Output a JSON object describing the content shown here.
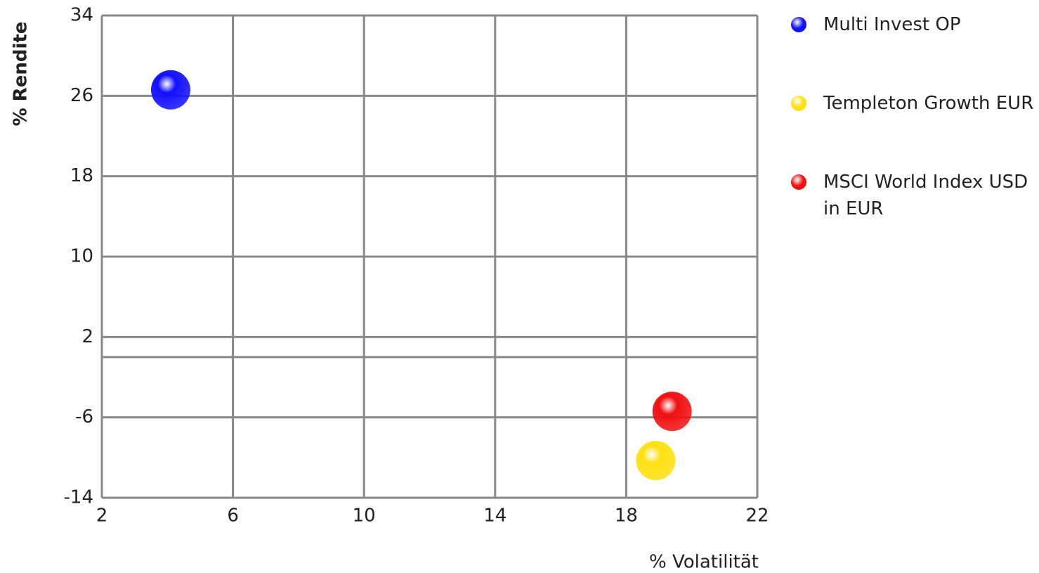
{
  "chart_data": {
    "type": "scatter",
    "xlabel": "% Volatilität",
    "ylabel": "% Rendite",
    "xlim": [
      2,
      22
    ],
    "xticks": [
      2,
      6,
      10,
      14,
      18,
      22
    ],
    "ylim": [
      -14,
      34
    ],
    "yticks": [
      -14,
      -6,
      2,
      10,
      18,
      26,
      34
    ],
    "grid": true,
    "legend": "right",
    "series": [
      {
        "name": "Multi Invest OP",
        "color": "#1010ff",
        "x": [
          4.1
        ],
        "values": [
          26.6
        ]
      },
      {
        "name": "Templeton Growth EUR",
        "color": "#ffe010",
        "x": [
          18.9
        ],
        "values": [
          -10.3
        ]
      },
      {
        "name": "MSCI World Index USD in EUR",
        "color": "#f01010",
        "x": [
          19.4
        ],
        "values": [
          -5.4
        ]
      }
    ]
  }
}
